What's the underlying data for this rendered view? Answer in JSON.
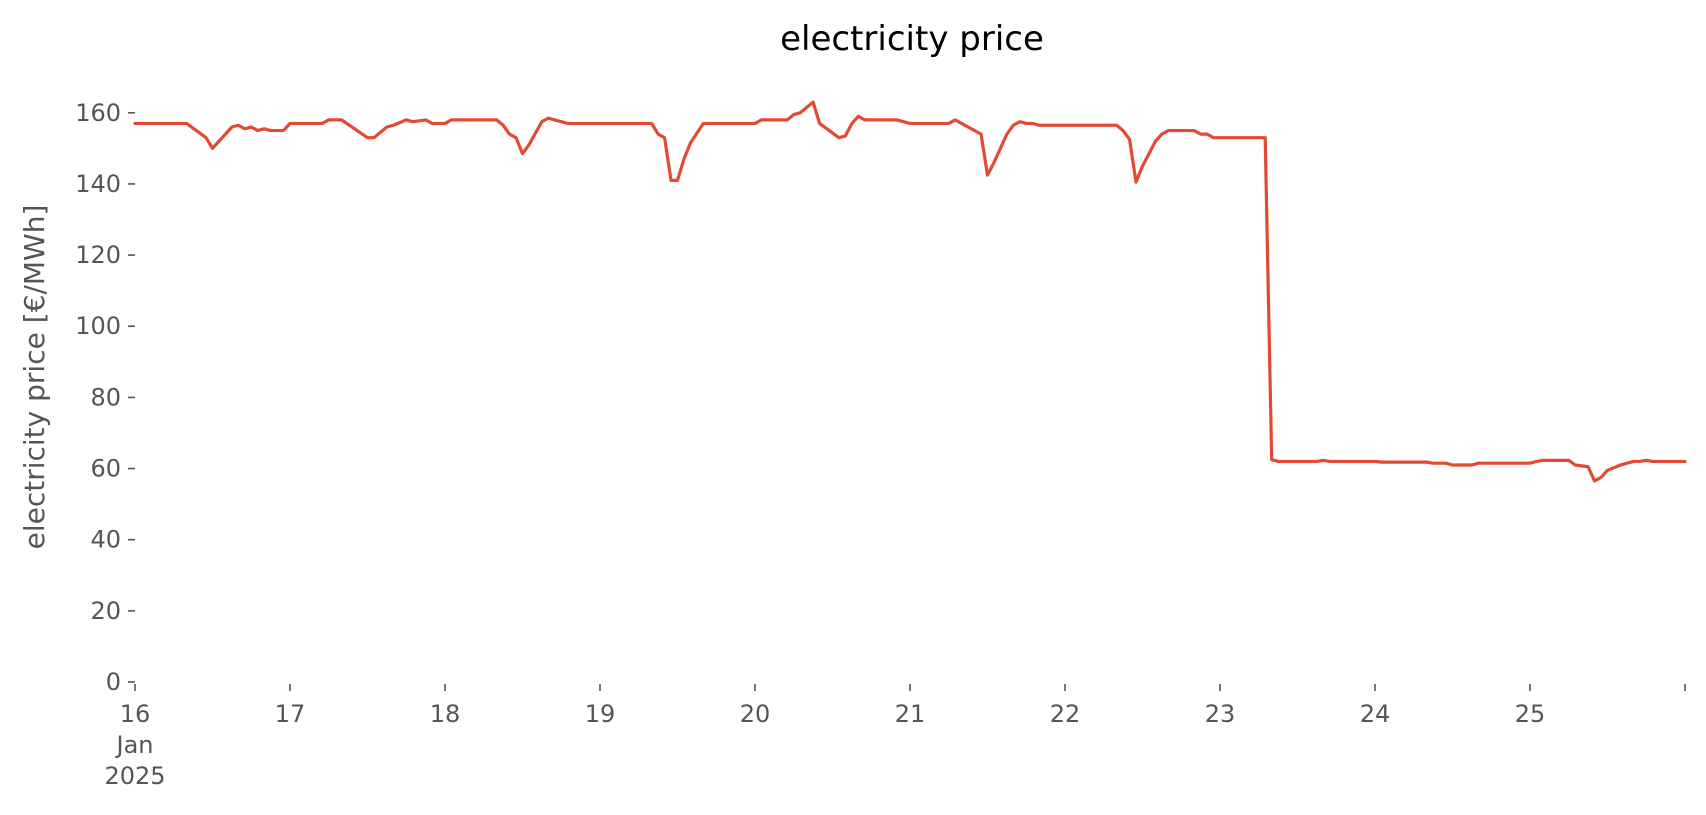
{
  "chart_data": {
    "type": "line",
    "title": "electricity price",
    "xlabel": "",
    "ylabel": "electricity price [€/MWh]",
    "xlim": [
      "2025-01-16T00:00",
      "2025-01-26T00:00"
    ],
    "ylim": [
      0,
      165
    ],
    "yticks": [
      0,
      20,
      40,
      60,
      80,
      100,
      120,
      140,
      160
    ],
    "xticks": [
      {
        "date": "2025-01-16",
        "label": [
          "16",
          "Jan",
          "2025"
        ]
      },
      {
        "date": "2025-01-17",
        "label": [
          "17"
        ]
      },
      {
        "date": "2025-01-18",
        "label": [
          "18"
        ]
      },
      {
        "date": "2025-01-19",
        "label": [
          "19"
        ]
      },
      {
        "date": "2025-01-20",
        "label": [
          "20"
        ]
      },
      {
        "date": "2025-01-21",
        "label": [
          "21"
        ]
      },
      {
        "date": "2025-01-22",
        "label": [
          "22"
        ]
      },
      {
        "date": "2025-01-23",
        "label": [
          "23"
        ]
      },
      {
        "date": "2025-01-24",
        "label": [
          "24"
        ]
      },
      {
        "date": "2025-01-25",
        "label": [
          "25"
        ]
      },
      {
        "date": "2025-01-26",
        "label": [
          ""
        ]
      }
    ],
    "grid": false,
    "series": [
      {
        "color": "#e24a33",
        "points": [
          [
            "2025-01-16T00:00",
            157.0
          ],
          [
            "2025-01-16T08:00",
            157.0
          ],
          [
            "2025-01-16T11:00",
            153.0
          ],
          [
            "2025-01-16T12:00",
            150.0
          ],
          [
            "2025-01-16T13:00",
            152.0
          ],
          [
            "2025-01-16T15:00",
            156.0
          ],
          [
            "2025-01-16T16:00",
            156.5
          ],
          [
            "2025-01-16T17:00",
            155.5
          ],
          [
            "2025-01-16T18:00",
            156.0
          ],
          [
            "2025-01-16T19:00",
            155.0
          ],
          [
            "2025-01-16T20:00",
            155.5
          ],
          [
            "2025-01-16T21:00",
            155.0
          ],
          [
            "2025-01-16T23:00",
            155.0
          ],
          [
            "2025-01-17T00:00",
            157.0
          ],
          [
            "2025-01-17T05:00",
            157.0
          ],
          [
            "2025-01-17T06:00",
            158.0
          ],
          [
            "2025-01-17T08:00",
            158.0
          ],
          [
            "2025-01-17T12:00",
            153.0
          ],
          [
            "2025-01-17T13:00",
            153.0
          ],
          [
            "2025-01-17T15:00",
            156.0
          ],
          [
            "2025-01-17T16:00",
            156.5
          ],
          [
            "2025-01-17T18:00",
            158.0
          ],
          [
            "2025-01-17T19:00",
            157.5
          ],
          [
            "2025-01-17T21:00",
            158.0
          ],
          [
            "2025-01-17T22:00",
            157.0
          ],
          [
            "2025-01-18T00:00",
            157.0
          ],
          [
            "2025-01-18T01:00",
            158.0
          ],
          [
            "2025-01-18T08:00",
            158.0
          ],
          [
            "2025-01-18T09:00",
            156.5
          ],
          [
            "2025-01-18T10:00",
            154.0
          ],
          [
            "2025-01-18T11:00",
            153.0
          ],
          [
            "2025-01-18T12:00",
            148.5
          ],
          [
            "2025-01-18T13:00",
            151.0
          ],
          [
            "2025-01-18T15:00",
            157.5
          ],
          [
            "2025-01-18T16:00",
            158.5
          ],
          [
            "2025-01-18T17:00",
            158.0
          ],
          [
            "2025-01-18T19:00",
            157.0
          ],
          [
            "2025-01-19T08:00",
            157.0
          ],
          [
            "2025-01-19T09:00",
            154.0
          ],
          [
            "2025-01-19T10:00",
            153.0
          ],
          [
            "2025-01-19T11:00",
            141.0
          ],
          [
            "2025-01-19T12:00",
            141.0
          ],
          [
            "2025-01-19T13:00",
            147.0
          ],
          [
            "2025-01-19T14:00",
            151.5
          ],
          [
            "2025-01-19T16:00",
            157.0
          ],
          [
            "2025-01-20T00:00",
            157.0
          ],
          [
            "2025-01-20T01:00",
            158.0
          ],
          [
            "2025-01-20T05:00",
            158.0
          ],
          [
            "2025-01-20T06:00",
            159.5
          ],
          [
            "2025-01-20T07:00",
            160.0
          ],
          [
            "2025-01-20T09:00",
            163.0
          ],
          [
            "2025-01-20T10:00",
            157.0
          ],
          [
            "2025-01-20T13:00",
            153.0
          ],
          [
            "2025-01-20T14:00",
            153.5
          ],
          [
            "2025-01-20T15:00",
            157.0
          ],
          [
            "2025-01-20T16:00",
            159.0
          ],
          [
            "2025-01-20T17:00",
            158.0
          ],
          [
            "2025-01-20T22:00",
            158.0
          ],
          [
            "2025-01-20T23:00",
            157.5
          ],
          [
            "2025-01-21T00:00",
            157.0
          ],
          [
            "2025-01-21T06:00",
            157.0
          ],
          [
            "2025-01-21T07:00",
            158.0
          ],
          [
            "2025-01-21T11:00",
            154.0
          ],
          [
            "2025-01-21T12:00",
            142.5
          ],
          [
            "2025-01-21T13:00",
            146.0
          ],
          [
            "2025-01-21T15:00",
            154.0
          ],
          [
            "2025-01-21T16:00",
            156.5
          ],
          [
            "2025-01-21T17:00",
            157.5
          ],
          [
            "2025-01-21T18:00",
            157.0
          ],
          [
            "2025-01-21T19:00",
            157.0
          ],
          [
            "2025-01-21T20:00",
            156.5
          ],
          [
            "2025-01-22T08:00",
            156.5
          ],
          [
            "2025-01-22T09:00",
            155.0
          ],
          [
            "2025-01-22T10:00",
            152.5
          ],
          [
            "2025-01-22T11:00",
            140.5
          ],
          [
            "2025-01-22T12:00",
            145.0
          ],
          [
            "2025-01-22T14:00",
            152.0
          ],
          [
            "2025-01-22T15:00",
            154.0
          ],
          [
            "2025-01-22T16:00",
            155.0
          ],
          [
            "2025-01-22T20:00",
            155.0
          ],
          [
            "2025-01-22T21:00",
            154.0
          ],
          [
            "2025-01-22T22:00",
            154.0
          ],
          [
            "2025-01-22T23:00",
            153.0
          ],
          [
            "2025-01-23T07:00",
            153.0
          ],
          [
            "2025-01-23T08:00",
            62.5
          ],
          [
            "2025-01-23T09:00",
            62.0
          ],
          [
            "2025-01-23T15:00",
            62.0
          ],
          [
            "2025-01-23T16:00",
            62.3
          ],
          [
            "2025-01-23T17:00",
            62.0
          ],
          [
            "2025-01-24T00:00",
            62.0
          ],
          [
            "2025-01-24T01:00",
            61.8
          ],
          [
            "2025-01-24T08:00",
            61.8
          ],
          [
            "2025-01-24T09:00",
            61.5
          ],
          [
            "2025-01-24T11:00",
            61.5
          ],
          [
            "2025-01-24T12:00",
            61.0
          ],
          [
            "2025-01-24T15:00",
            61.0
          ],
          [
            "2025-01-24T16:00",
            61.5
          ],
          [
            "2025-01-25T00:00",
            61.5
          ],
          [
            "2025-01-25T01:00",
            62.0
          ],
          [
            "2025-01-25T02:00",
            62.3
          ],
          [
            "2025-01-25T05:00",
            62.3
          ],
          [
            "2025-01-25T06:00",
            62.3
          ],
          [
            "2025-01-25T07:00",
            61.0
          ],
          [
            "2025-01-25T09:00",
            60.5
          ],
          [
            "2025-01-25T10:00",
            56.5
          ],
          [
            "2025-01-25T11:00",
            57.5
          ],
          [
            "2025-01-25T12:00",
            59.5
          ],
          [
            "2025-01-25T14:00",
            61.0
          ],
          [
            "2025-01-25T16:00",
            62.0
          ],
          [
            "2025-01-25T17:00",
            62.0
          ],
          [
            "2025-01-25T18:00",
            62.3
          ],
          [
            "2025-01-25T19:00",
            62.0
          ],
          [
            "2025-01-26T00:00",
            62.0
          ]
        ]
      }
    ]
  }
}
